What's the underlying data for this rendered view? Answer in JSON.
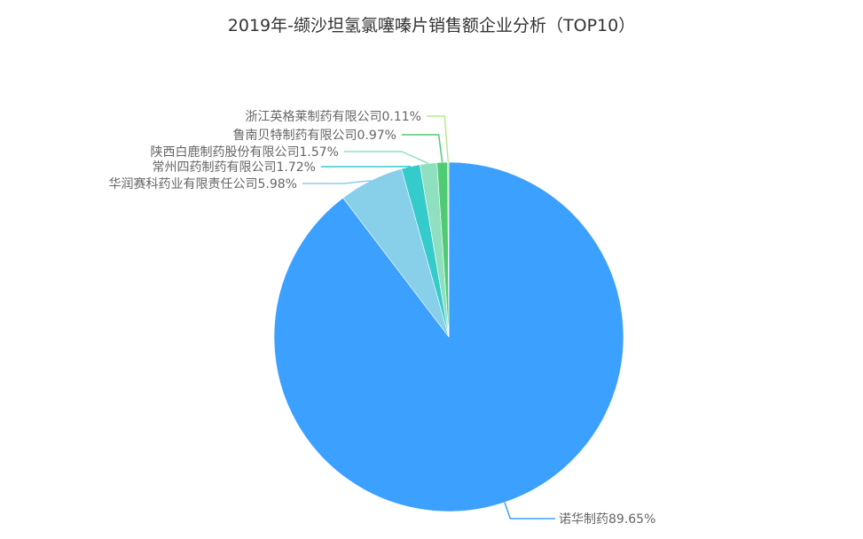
{
  "chart_data": {
    "type": "pie",
    "title": "2019年-缬沙坦氢氯噻嗪片销售额企业分析（TOP10）",
    "start_angle": "12 o'clock",
    "direction": "clockwise",
    "slices": [
      {
        "name": "诺华制药",
        "value": 89.65,
        "label": "诺华制药89.65%",
        "color": "#3ba0ff"
      },
      {
        "name": "华润赛科药业有限责任公司",
        "value": 5.98,
        "label": "华润赛科药业有限责任公司5.98%",
        "color": "#88cfea"
      },
      {
        "name": "常州四药制药有限公司",
        "value": 1.72,
        "label": "常州四药制药有限公司1.72%",
        "color": "#36cbcb"
      },
      {
        "name": "陕西白鹿制药股份有限公司",
        "value": 1.57,
        "label": "陕西白鹿制药股份有限公司1.57%",
        "color": "#8fe0c0"
      },
      {
        "name": "鲁南贝特制药有限公司",
        "value": 0.97,
        "label": "鲁南贝特制药有限公司0.97%",
        "color": "#4ecb73"
      },
      {
        "name": "浙江英格莱制药有限公司",
        "value": 0.11,
        "label": "浙江英格莱制药有限公司0.11%",
        "color": "#b8e890"
      }
    ]
  }
}
